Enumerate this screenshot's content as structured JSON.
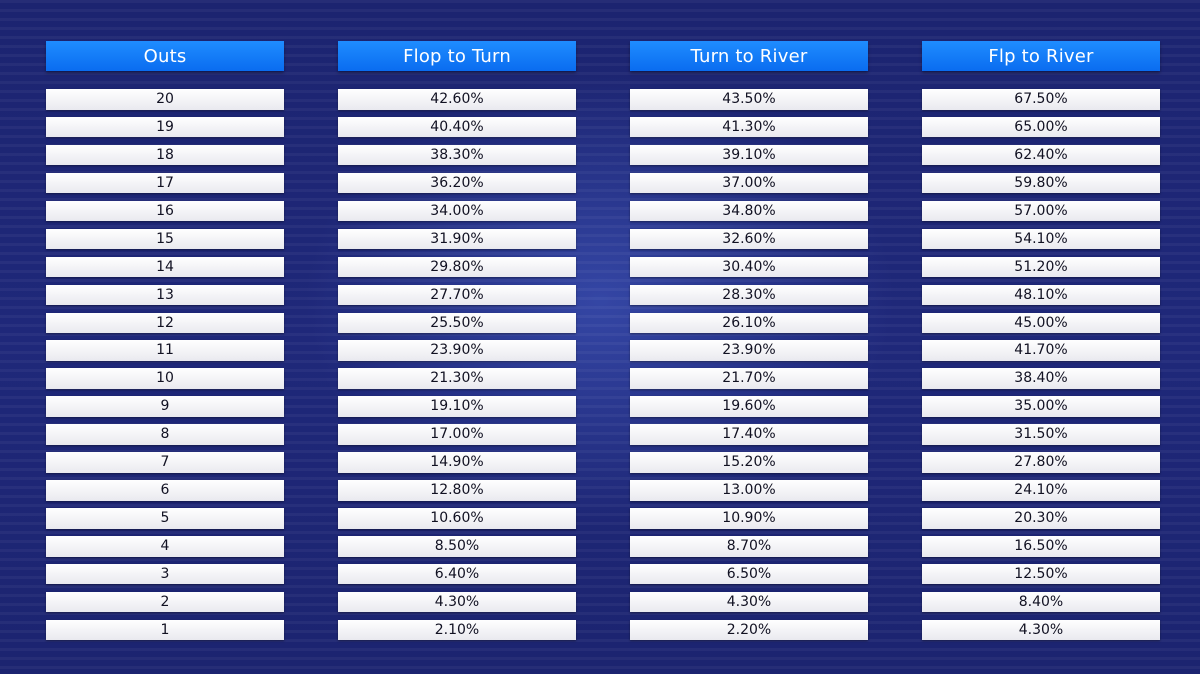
{
  "table": {
    "headers": {
      "outs": "Outs",
      "flop_to_turn": "Flop to Turn",
      "turn_to_river": "Turn to River",
      "flop_to_river": "Flp to River"
    },
    "outs": [
      "20",
      "19",
      "18",
      "17",
      "16",
      "15",
      "14",
      "13",
      "12",
      "11",
      "10",
      "9",
      "8",
      "7",
      "6",
      "5",
      "4",
      "3",
      "2",
      "1"
    ],
    "flop_to_turn": [
      "42.60%",
      "40.40%",
      "38.30%",
      "36.20%",
      "34.00%",
      "31.90%",
      "29.80%",
      "27.70%",
      "25.50%",
      "23.90%",
      "21.30%",
      "19.10%",
      "17.00%",
      "14.90%",
      "12.80%",
      "10.60%",
      "8.50%",
      "6.40%",
      "4.30%",
      "2.10%"
    ],
    "turn_to_river": [
      "43.50%",
      "41.30%",
      "39.10%",
      "37.00%",
      "34.80%",
      "32.60%",
      "30.40%",
      "28.30%",
      "26.10%",
      "23.90%",
      "21.70%",
      "19.60%",
      "17.40%",
      "15.20%",
      "13.00%",
      "10.90%",
      "8.70%",
      "6.50%",
      "4.30%",
      "2.20%"
    ],
    "flop_to_river": [
      "67.50%",
      "65.00%",
      "62.40%",
      "59.80%",
      "57.00%",
      "54.10%",
      "51.20%",
      "48.10%",
      "45.00%",
      "41.70%",
      "38.40%",
      "35.00%",
      "31.50%",
      "27.80%",
      "24.10%",
      "20.30%",
      "16.50%",
      "12.50%",
      "8.40%",
      "4.30%"
    ]
  },
  "colors": {
    "background": "#1b2370",
    "header": "#0a6cf0",
    "cell": "#ececf2"
  }
}
